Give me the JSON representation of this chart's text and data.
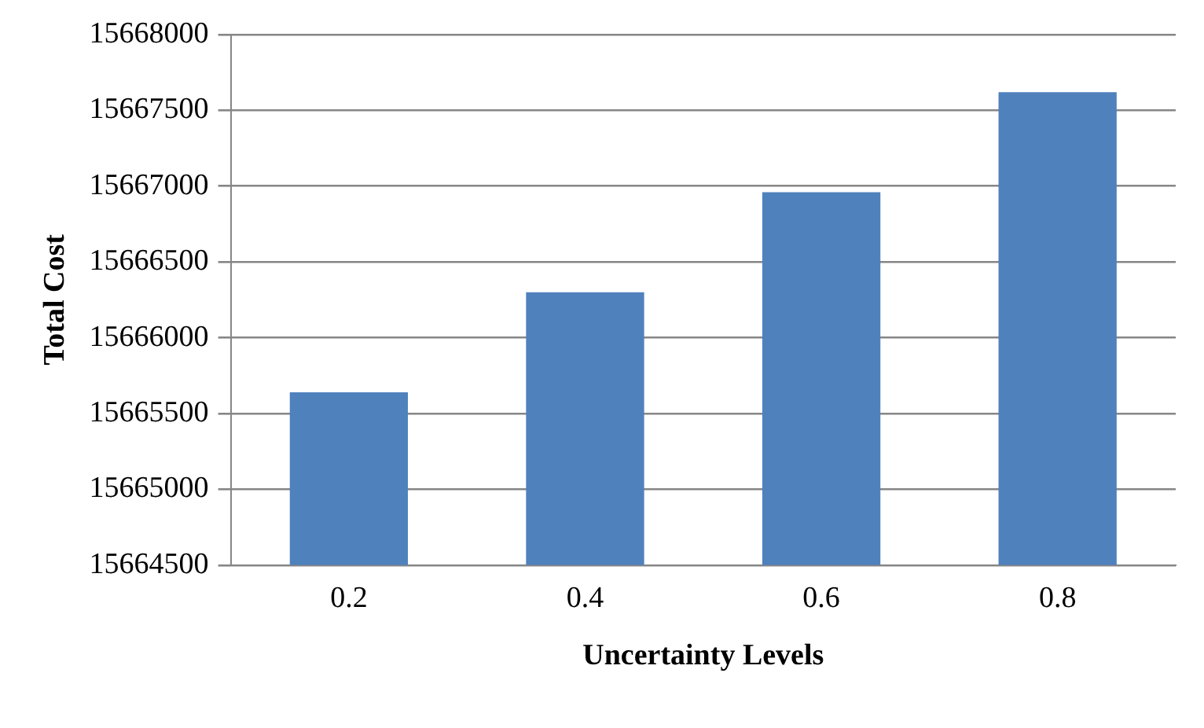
{
  "chart_data": {
    "type": "bar",
    "xlabel": "Uncertainty Levels",
    "ylabel": "Total Cost",
    "categories": [
      "0.2",
      "0.4",
      "0.6",
      "0.8"
    ],
    "values": [
      15665640,
      15666300,
      15666960,
      15667620
    ],
    "color": "#4f81bd",
    "ylim": [
      15664500,
      15668000
    ],
    "yticks": [
      15664500,
      15665000,
      15665500,
      15666000,
      15666500,
      15667000,
      15667500,
      15668000
    ],
    "grid": "y",
    "legend": false
  }
}
